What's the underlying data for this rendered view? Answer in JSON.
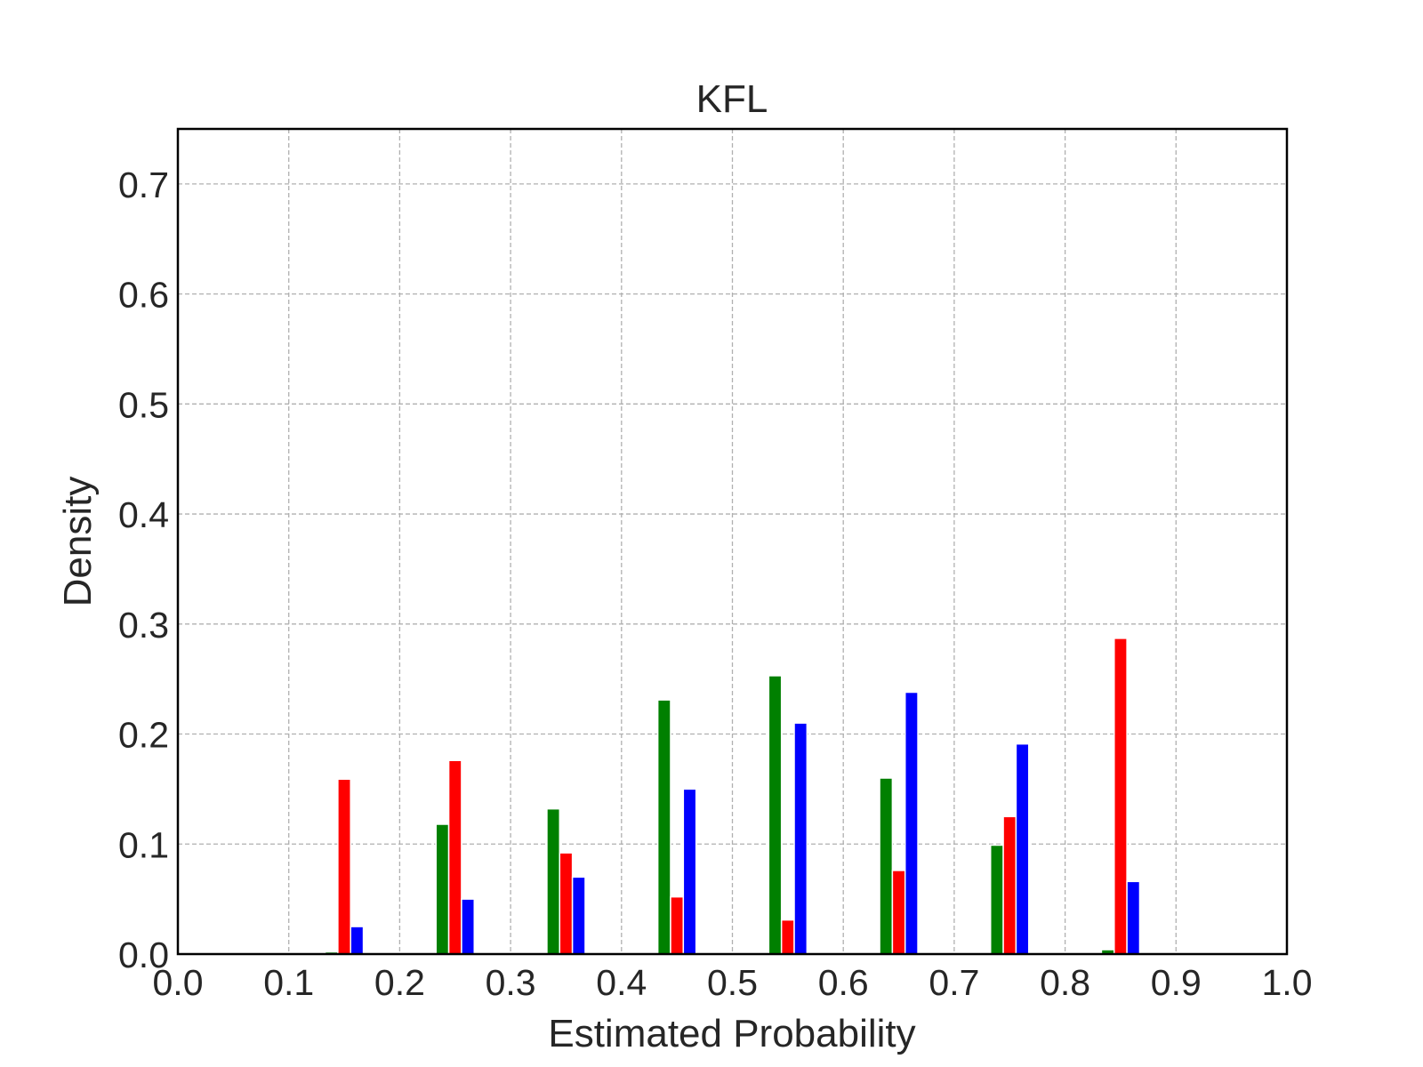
{
  "chart_data": {
    "type": "bar",
    "title": "KFL",
    "xlabel": "Estimated Probability",
    "ylabel": "Density",
    "xlim": [
      0.0,
      1.0
    ],
    "ylim": [
      0.0,
      0.75
    ],
    "xticks": [
      "0.0",
      "0.1",
      "0.2",
      "0.3",
      "0.4",
      "0.5",
      "0.6",
      "0.7",
      "0.8",
      "0.9",
      "1.0"
    ],
    "yticks": [
      "0.0",
      "0.1",
      "0.2",
      "0.3",
      "0.4",
      "0.5",
      "0.6",
      "0.7"
    ],
    "grid": true,
    "bin_centers": [
      0.15,
      0.25,
      0.35,
      0.45,
      0.55,
      0.65,
      0.75,
      0.85
    ],
    "series": [
      {
        "color": "#008000",
        "values": [
          0.002,
          0.118,
          0.132,
          0.231,
          0.253,
          0.16,
          0.099,
          0.004
        ]
      },
      {
        "color": "#ff0000",
        "values": [
          0.159,
          0.176,
          0.092,
          0.052,
          0.031,
          0.076,
          0.125,
          0.287
        ]
      },
      {
        "color": "#0000ff",
        "values": [
          0.025,
          0.05,
          0.07,
          0.15,
          0.21,
          0.238,
          0.191,
          0.066
        ]
      }
    ]
  }
}
